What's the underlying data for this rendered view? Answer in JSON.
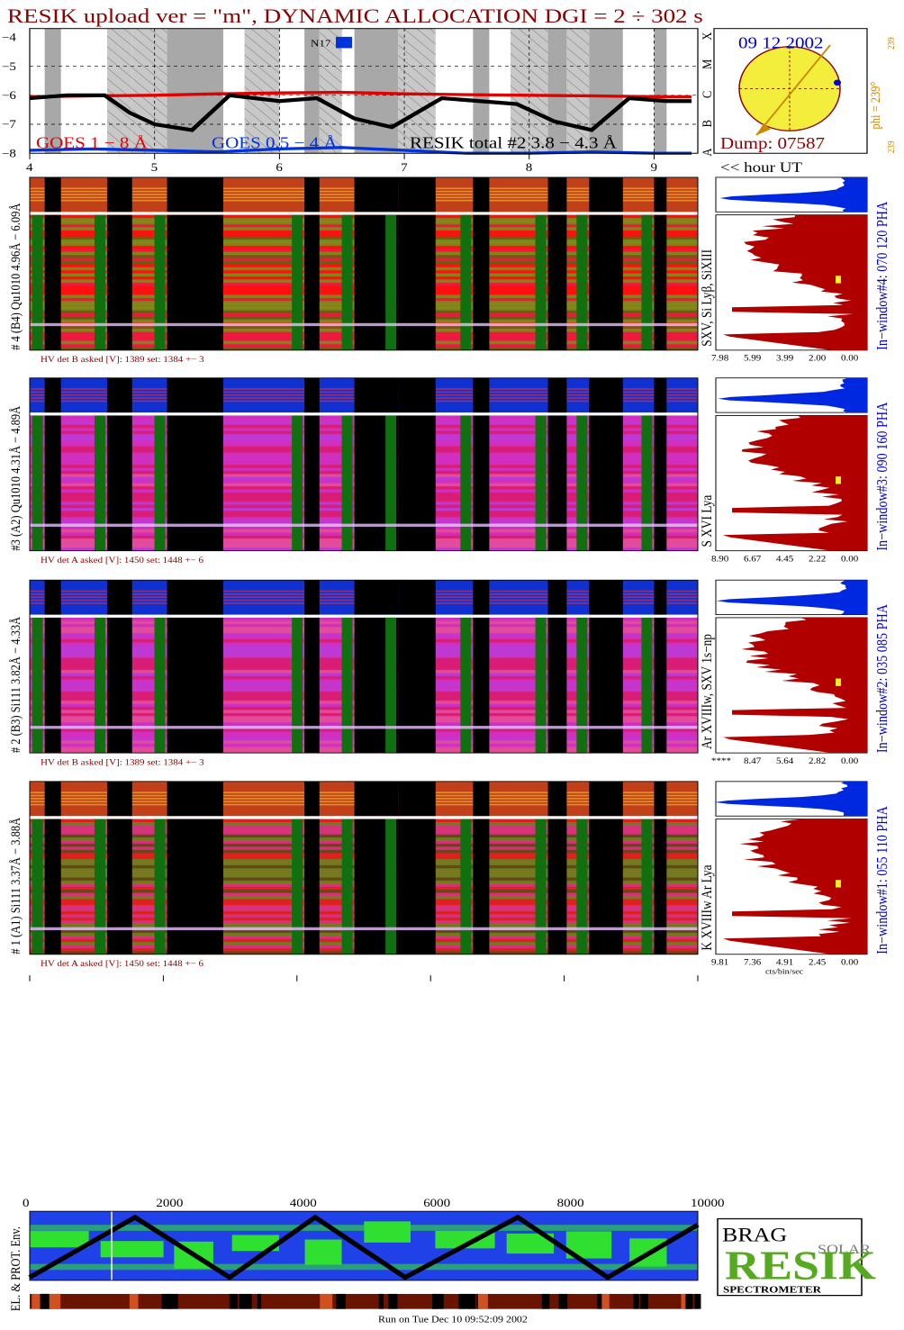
{
  "title": "RESIK upload ver = \"m\", DYNAMIC ALLOCATION  DGI =   2 ÷ 302 s",
  "goes_panel": {
    "y_ticks": [
      "−4",
      "−5",
      "−6",
      "−7",
      "−8"
    ],
    "class_letters": [
      "X",
      "M",
      "C",
      "B",
      "A"
    ],
    "noaa_label": "N17",
    "legend": {
      "goes_long": "GOES 1 − 8 Å",
      "goes_short": "GOES 0.5 − 4 Å",
      "resik_total": "RESIK total #2  3.8 − 4.3 Å"
    },
    "colors": {
      "goes_long": "#e00000",
      "goes_short": "#0033dd",
      "resik": "#000000"
    }
  },
  "sun_panel": {
    "date": "09 12 2002",
    "dump": "Dump: 07587",
    "phi_label": "phi = 239°",
    "side_top": "239",
    "side_bottom": "239"
  },
  "time_axis": {
    "ticks": [
      "4",
      "5",
      "6",
      "7",
      "8",
      "9"
    ],
    "label": "<< hour UT"
  },
  "bottom_axis": {
    "ticks": [
      "0",
      "2000",
      "4000",
      "6000",
      "8000",
      "10000"
    ]
  },
  "channels": [
    {
      "id": "ch4",
      "left_label": "# 4 (B4) Qu1010 4.96Å − 6.09Å",
      "lines_label": "SXV, Si Lyβ, SiXIII",
      "window_label": "In−window#4:  070 120 PHA",
      "hv": "HV det B asked [V]:  1389 set:  1384  +−    3",
      "hist_ticks": [
        "7.98",
        "5.99",
        "3.99",
        "2.00",
        "0.00"
      ],
      "scheme": "green"
    },
    {
      "id": "ch3",
      "left_label": "#3 (A2) Qu1010  4.31Å − 4.89Å",
      "lines_label": "S XVI Lya",
      "window_label": "In−window#3:  090 160 PHA",
      "hv": "HV det A asked [V]:  1450 set:  1448  +−    6",
      "hist_ticks": [
        "8.90",
        "6.67",
        "4.45",
        "2.22",
        "0.00"
      ],
      "scheme": "magenta"
    },
    {
      "id": "ch2",
      "left_label": "# 2 (B3) Si111  3.82Å − 4.33Å",
      "lines_label": "Ar XVIIIw,  SXV  1s−np",
      "window_label": "In−window#2:  035 085 PHA",
      "hv": "HV det B asked [V]:  1389 set:  1384  +−    3",
      "hist_ticks": [
        "****",
        "8.47",
        "5.64",
        "2.82",
        "0.00"
      ],
      "scheme": "magenta"
    },
    {
      "id": "ch1",
      "left_label": "# 1 (A1) Si111  3.37Å − 3.88Å",
      "lines_label": "K XVIIIw  Ar Lya",
      "window_label": "In−window#1:  055 110 PHA",
      "hv": "HV det A asked [V]:  1450 set:  1448  +−    6",
      "hist_ticks": [
        "9.81",
        "7.36",
        "4.91",
        "2.45",
        "0.00"
      ],
      "hist_unit": "cts/bin/sec",
      "scheme": "mixed"
    }
  ],
  "env_label": "EL. & PROT. Env.",
  "logo": {
    "brand": "RESIK",
    "words": [
      "BRAG",
      "SOLAR"
    ],
    "sub": "SPECTROMETER"
  },
  "footer": "Run on Tue Dec 10 09:52:09 2002",
  "chart_data": {
    "type": "line",
    "title": "RESIK upload ver = \"m\", DYNAMIC ALLOCATION  DGI =   2 ÷ 302 s",
    "xlabel": "<< hour UT",
    "ylabel": "",
    "x_range_hours": [
      4,
      9.35
    ],
    "ylim_log_flux": [
      -8,
      -3.7
    ],
    "series": [
      {
        "name": "GOES 1 − 8 Å",
        "x": [
          4.0,
          4.5,
          5.0,
          5.5,
          6.0,
          6.5,
          7.0,
          7.5,
          8.0,
          8.5,
          9.0,
          9.3
        ],
        "y": [
          -6.05,
          -6.02,
          -6.0,
          -5.95,
          -5.92,
          -5.9,
          -5.95,
          -5.98,
          -6.0,
          -6.02,
          -6.05,
          -6.05
        ]
      },
      {
        "name": "GOES 0.5 − 4 Å",
        "x": [
          4.0,
          4.5,
          5.0,
          5.5,
          6.0,
          6.5,
          7.0,
          7.5,
          8.0,
          8.5,
          9.0,
          9.3
        ],
        "y": [
          -7.9,
          -7.85,
          -7.9,
          -7.95,
          -7.85,
          -7.8,
          -7.9,
          -8.0,
          -8.0,
          -7.95,
          -8.0,
          -8.0
        ]
      },
      {
        "name": "RESIK total #2  3.8 − 4.3 Å",
        "x": [
          4.0,
          4.3,
          4.6,
          4.8,
          5.0,
          5.3,
          5.6,
          5.8,
          6.0,
          6.3,
          6.6,
          6.9,
          7.3,
          7.6,
          7.9,
          8.2,
          8.5,
          8.8,
          9.1,
          9.3
        ],
        "y": [
          -6.1,
          -6.0,
          -6.0,
          -6.6,
          -7.0,
          -7.2,
          -6.0,
          -6.1,
          -6.2,
          -6.1,
          -6.8,
          -7.1,
          -6.1,
          -6.2,
          -6.3,
          -6.9,
          -7.2,
          -6.1,
          -6.2,
          -6.2
        ]
      }
    ]
  }
}
